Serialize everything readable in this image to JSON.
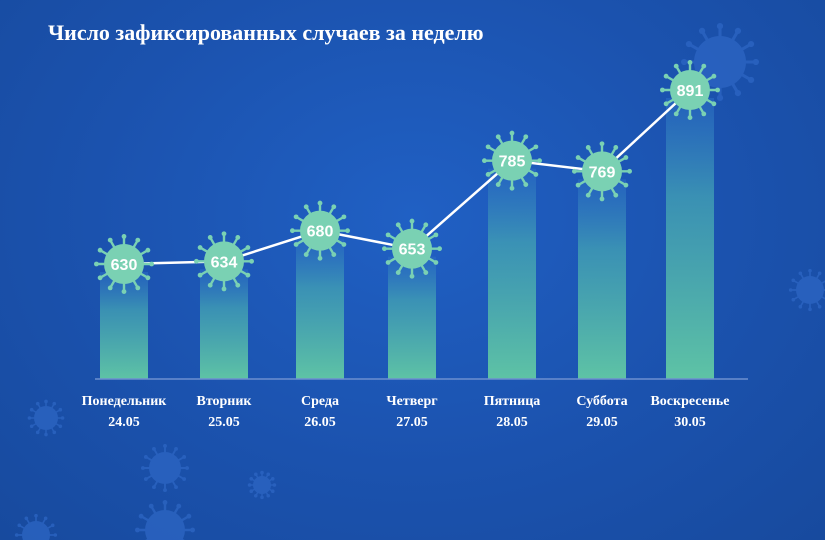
{
  "chart_data": {
    "type": "bar",
    "title": "Число зафиксированных случаев за неделю",
    "categories": [
      "Понедельник",
      "Вторник",
      "Среда",
      "Четверг",
      "Пятница",
      "Суббота",
      "Воскресенье"
    ],
    "dates": [
      "24.05",
      "25.05",
      "26.05",
      "27.05",
      "28.05",
      "29.05",
      "30.05"
    ],
    "values": [
      630,
      634,
      680,
      653,
      785,
      769,
      891
    ],
    "series_line": true,
    "grid": false,
    "colors": {
      "background": "#1d54b0",
      "bar_top": "#5fc4a4",
      "bubble": "#7ad1b3",
      "line": "#ffffff",
      "text": "#ffffff"
    }
  },
  "decor": {
    "icon": "virus-icon"
  }
}
